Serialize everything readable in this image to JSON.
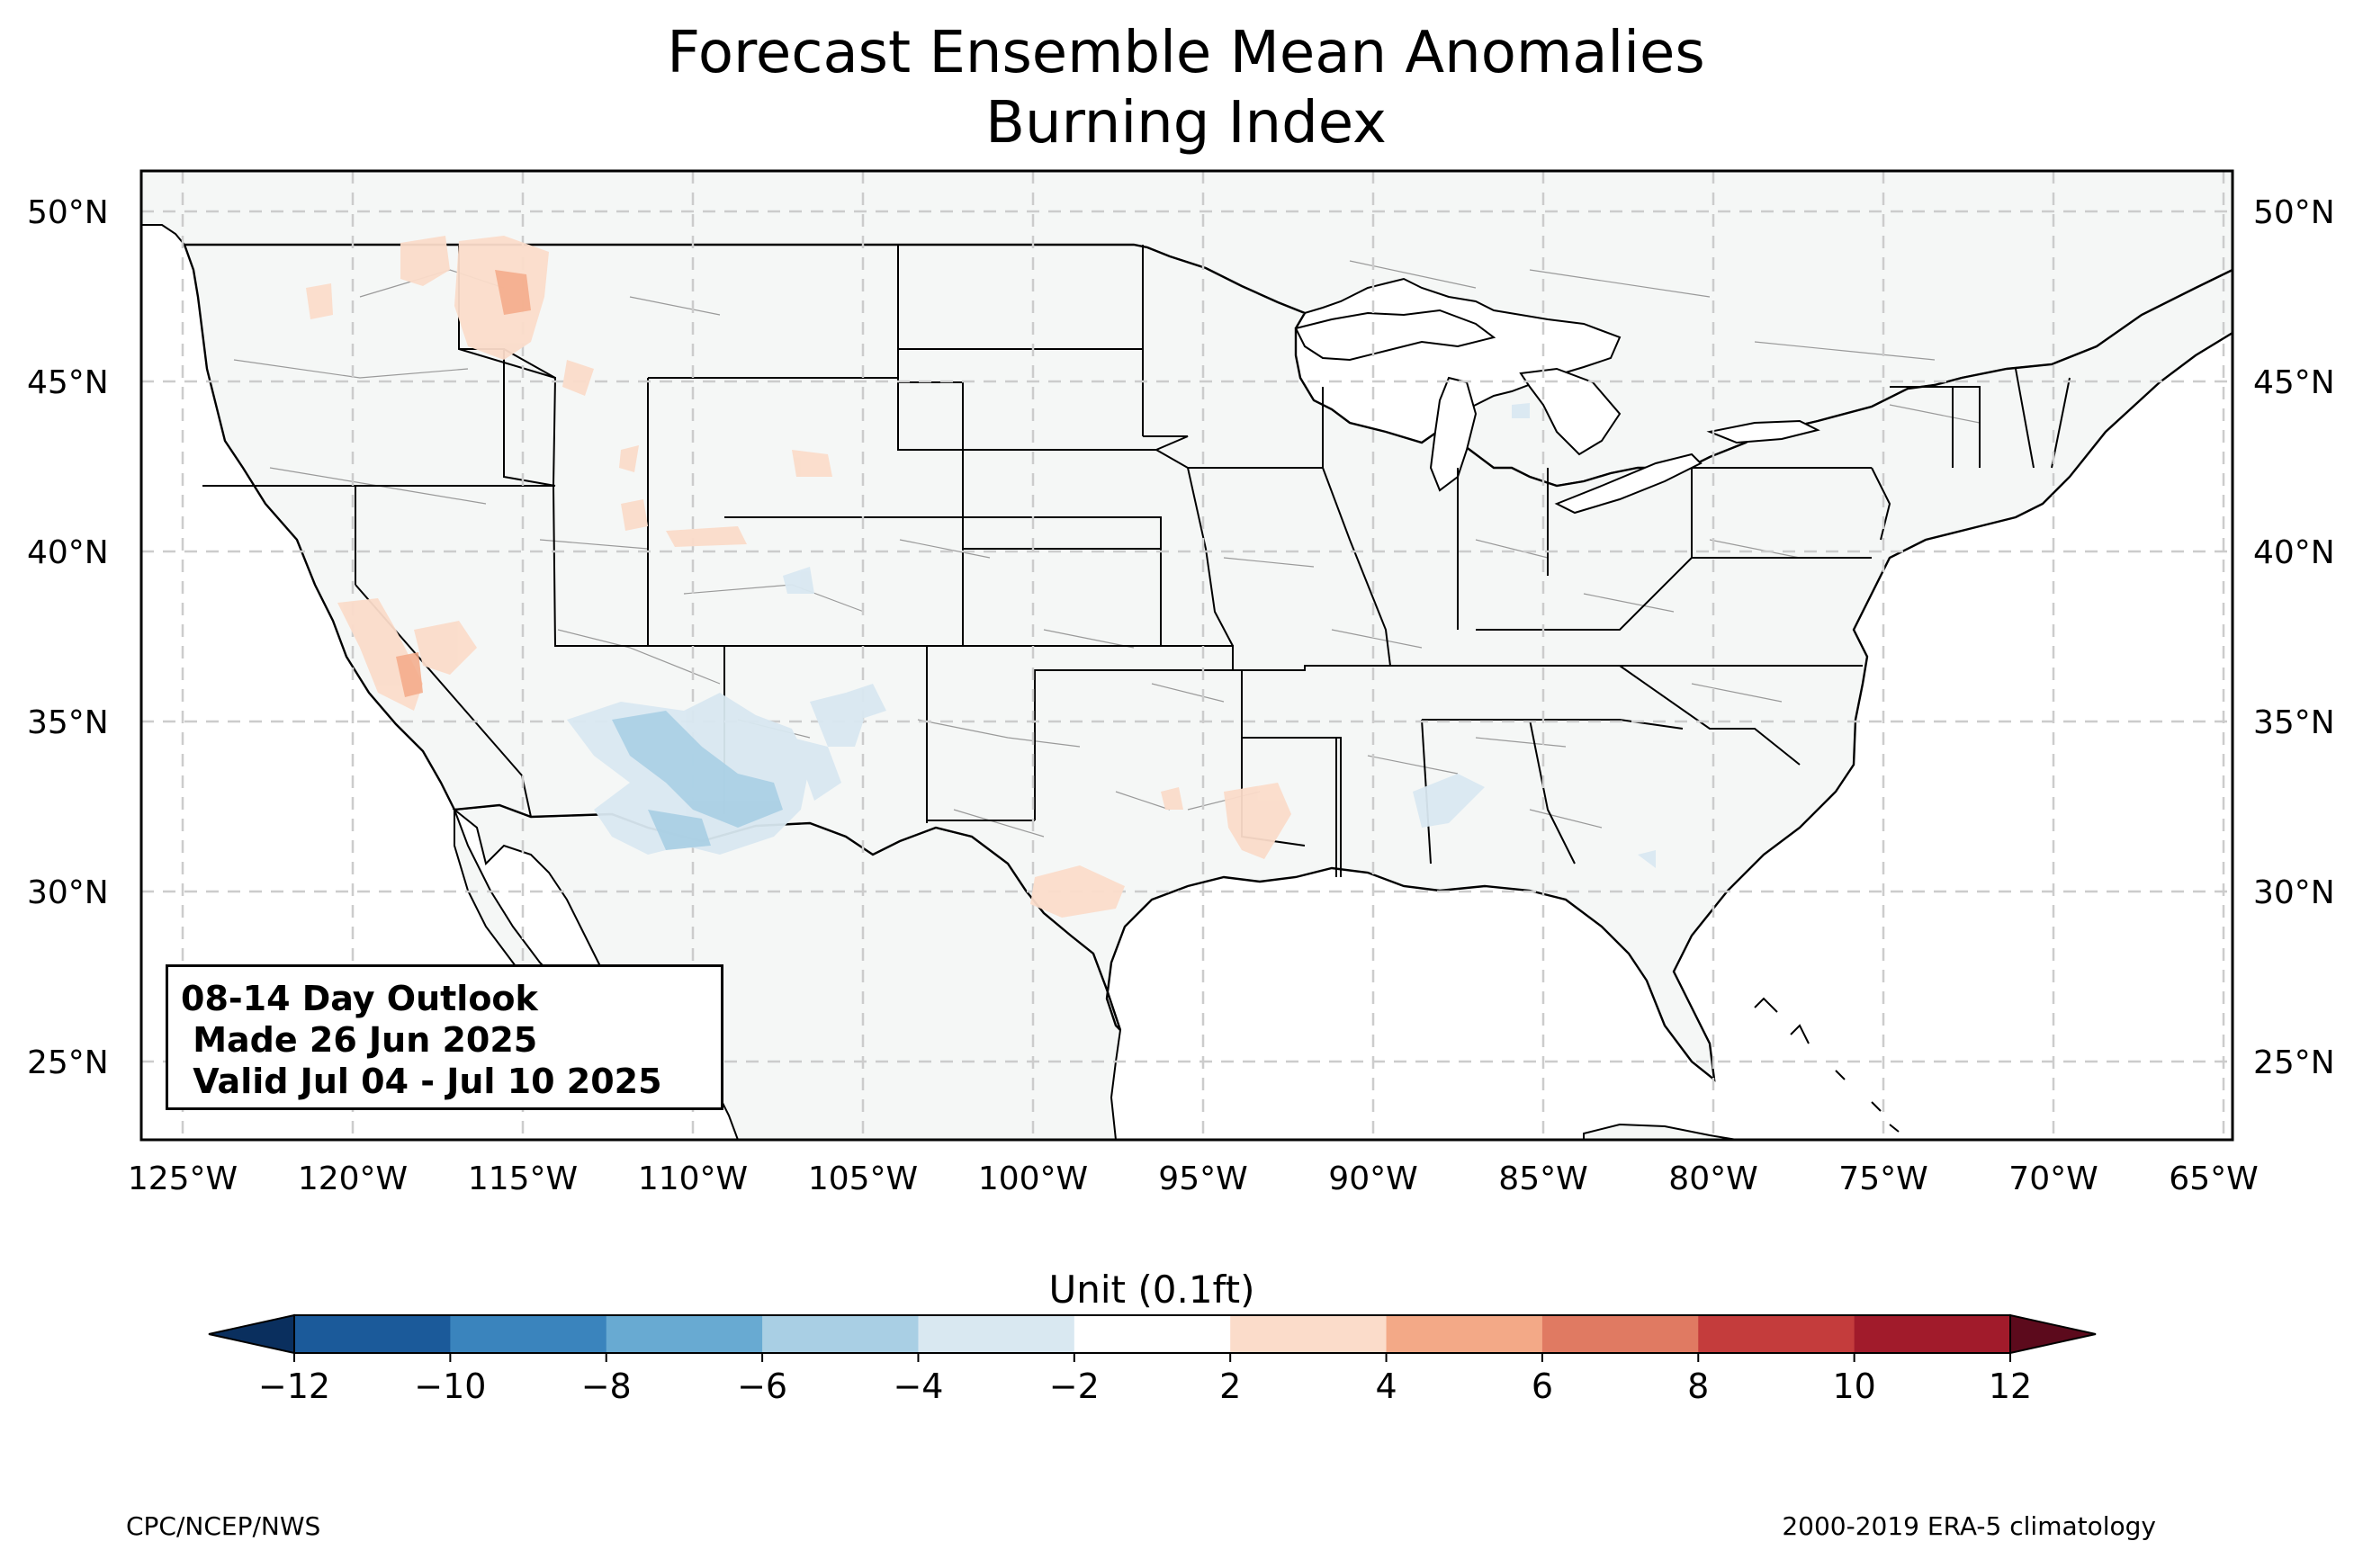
{
  "title": "Forecast Ensemble Mean Anomalies",
  "subtitle": "Burning Index",
  "outlook_box": {
    "line1": "08-14 Day Outlook",
    "line2": " Made 26 Jun 2025",
    "line3": " Valid Jul 04 - Jul 10 2025"
  },
  "lat_labels": [
    "50°N",
    "45°N",
    "40°N",
    "35°N",
    "30°N",
    "25°N"
  ],
  "lon_labels": [
    "125°W",
    "120°W",
    "115°W",
    "110°W",
    "105°W",
    "100°W",
    "95°W",
    "90°W",
    "85°W",
    "80°W",
    "75°W",
    "70°W",
    "65°W"
  ],
  "colorbar": {
    "label": "Unit (0.1ft)",
    "ticks": [
      "−12",
      "−10",
      "−8",
      "−6",
      "−4",
      "−2",
      "2",
      "4",
      "6",
      "8",
      "10",
      "12"
    ],
    "colors": [
      "#1b5a9a",
      "#3a84bd",
      "#68aad2",
      "#a9cfe4",
      "#d9e8f1",
      "#ffffff",
      "#fbdcca",
      "#f3a987",
      "#e07a62",
      "#c43c3c",
      "#a11b2b"
    ],
    "under_color": "#0a2f5e",
    "over_color": "#5c0a1c"
  },
  "map_colors": {
    "land": "#f5f7f6",
    "border": "#000000",
    "county_lines": "#9a9a9a",
    "grid": "#cccccc"
  },
  "footer_left": "CPC/NCEP/NWS",
  "footer_right": "2000-2019 ERA-5 climatology"
}
